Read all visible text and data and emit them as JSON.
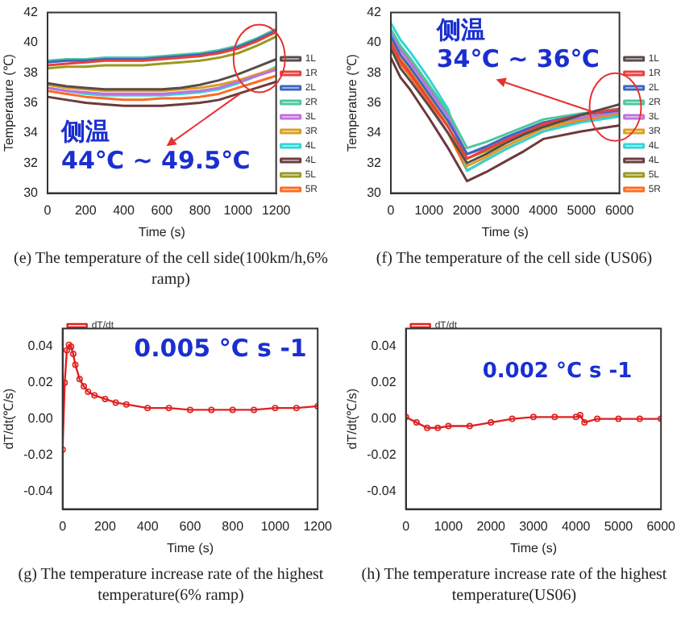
{
  "chart_data": [
    {
      "type": "line",
      "title": "(e) The temperature of the cell side(100km/h,6% ramp)",
      "xlabel": "Time (s)",
      "ylabel": "Temperature (℃)",
      "annotations": [
        "侧温",
        {
          "text": "44℃ ~ 49.5℃",
          "x": 1010,
          "y": 36.6
        }
      ],
      "legend": "right",
      "xlim": [
        0,
        1200
      ],
      "xticks": [
        0,
        200,
        400,
        600,
        800,
        1000,
        1200
      ],
      "ylim": [
        30,
        42
      ],
      "yticks": [
        30,
        32,
        34,
        36,
        38,
        40,
        42
      ],
      "x": [
        0,
        100,
        200,
        300,
        400,
        500,
        600,
        700,
        800,
        900,
        1000,
        1100,
        1200
      ],
      "series": [
        {
          "name": "1L",
          "color": "#5a4a4a",
          "values": [
            37.3,
            37.1,
            37.0,
            36.9,
            36.9,
            36.9,
            36.9,
            37.0,
            37.2,
            37.5,
            37.9,
            38.4,
            38.9
          ]
        },
        {
          "name": "1R",
          "color": "#e8403a",
          "values": [
            38.5,
            38.6,
            38.7,
            38.8,
            38.8,
            38.8,
            38.9,
            39.0,
            39.1,
            39.3,
            39.6,
            40.1,
            40.7
          ]
        },
        {
          "name": "2L",
          "color": "#3a66c0",
          "values": [
            38.7,
            38.8,
            38.8,
            38.9,
            38.9,
            38.9,
            39.0,
            39.1,
            39.2,
            39.4,
            39.7,
            40.2,
            40.8
          ]
        },
        {
          "name": "2R",
          "color": "#4cc6a0",
          "values": [
            38.8,
            38.9,
            38.9,
            39.0,
            39.0,
            39.0,
            39.1,
            39.2,
            39.3,
            39.5,
            39.8,
            40.3,
            40.9
          ]
        },
        {
          "name": "3L",
          "color": "#c070e0",
          "values": [
            37.0,
            36.8,
            36.7,
            36.6,
            36.6,
            36.6,
            36.6,
            36.7,
            36.8,
            37.0,
            37.4,
            37.8,
            38.2
          ]
        },
        {
          "name": "3R",
          "color": "#d8a020",
          "values": [
            37.2,
            37.0,
            36.9,
            36.8,
            36.8,
            36.8,
            36.8,
            36.9,
            37.0,
            37.2,
            37.5,
            37.9,
            38.3
          ]
        },
        {
          "name": "4L",
          "color": "#30d6d6",
          "values": [
            37.0,
            36.8,
            36.6,
            36.5,
            36.5,
            36.5,
            36.5,
            36.6,
            36.7,
            36.9,
            37.3,
            37.8,
            38.4
          ]
        },
        {
          "name": "4L",
          "color": "#6e3a3a",
          "values": [
            36.4,
            36.2,
            36.0,
            35.9,
            35.8,
            35.8,
            35.8,
            35.9,
            36.0,
            36.2,
            36.6,
            37.0,
            37.4
          ]
        },
        {
          "name": "5L",
          "color": "#9a9a20",
          "values": [
            38.3,
            38.4,
            38.4,
            38.5,
            38.5,
            38.5,
            38.6,
            38.7,
            38.8,
            39.0,
            39.3,
            39.8,
            40.4
          ]
        },
        {
          "name": "5R",
          "color": "#ff6a20",
          "values": [
            36.8,
            36.6,
            36.4,
            36.3,
            36.2,
            36.2,
            36.3,
            36.3,
            36.4,
            36.6,
            37.0,
            37.4,
            37.8
          ]
        }
      ]
    },
    {
      "type": "line",
      "title": "(f) The temperature of the cell side (US06)",
      "xlabel": "Time (s)",
      "ylabel": "Temperature (℃)",
      "annotations": [
        "侧温",
        {
          "text": "34℃ ~ 36℃",
          "x": 5300,
          "y": 35.4
        }
      ],
      "legend": "right",
      "xlim": [
        0,
        6000
      ],
      "xticks": [
        0,
        1000,
        2000,
        3000,
        4000,
        5000,
        6000
      ],
      "ylim": [
        30,
        42
      ],
      "yticks": [
        30,
        32,
        34,
        36,
        38,
        40,
        42
      ],
      "x": [
        0,
        250,
        500,
        1000,
        1500,
        2000,
        2500,
        3000,
        3500,
        4000,
        5000,
        6000
      ],
      "series": [
        {
          "name": "1L",
          "color": "#5a4a4a",
          "values": [
            39.6,
            38.3,
            37.5,
            35.8,
            34.0,
            32.0,
            32.6,
            33.3,
            33.9,
            34.4,
            35.2,
            35.9
          ]
        },
        {
          "name": "1R",
          "color": "#e8403a",
          "values": [
            40.0,
            38.8,
            38.0,
            36.2,
            34.4,
            32.3,
            32.9,
            33.5,
            34.0,
            34.6,
            35.2,
            35.6
          ]
        },
        {
          "name": "2L",
          "color": "#3a66c0",
          "values": [
            40.4,
            39.2,
            38.4,
            36.6,
            34.8,
            32.6,
            33.1,
            33.7,
            34.2,
            34.7,
            35.2,
            35.5
          ]
        },
        {
          "name": "2R",
          "color": "#4cc6a0",
          "values": [
            40.9,
            39.8,
            39.0,
            37.2,
            35.4,
            33.0,
            33.4,
            33.9,
            34.4,
            34.9,
            35.3,
            35.6
          ]
        },
        {
          "name": "3L",
          "color": "#c070e0",
          "values": [
            40.6,
            39.5,
            38.7,
            36.9,
            35.1,
            32.6,
            33.0,
            33.6,
            34.1,
            34.6,
            35.0,
            35.4
          ]
        },
        {
          "name": "3R",
          "color": "#d8a020",
          "values": [
            40.2,
            39.0,
            38.2,
            36.4,
            34.5,
            31.8,
            32.4,
            33.1,
            33.7,
            34.3,
            34.9,
            35.3
          ]
        },
        {
          "name": "4L",
          "color": "#30d6d6",
          "values": [
            41.3,
            40.2,
            39.4,
            37.6,
            35.6,
            31.5,
            32.2,
            32.9,
            33.5,
            34.1,
            34.7,
            35.1
          ]
        },
        {
          "name": "4L",
          "color": "#6e3a3a",
          "values": [
            39.0,
            37.7,
            36.9,
            35.0,
            33.0,
            30.8,
            31.4,
            32.1,
            32.8,
            33.6,
            34.1,
            34.5
          ]
        },
        {
          "name": "5L",
          "color": "#9a9a20",
          "values": [
            40.7,
            39.6,
            38.8,
            37.0,
            35.2,
            32.3,
            32.8,
            33.4,
            34.0,
            34.5,
            35.0,
            35.3
          ]
        },
        {
          "name": "5R",
          "color": "#ff6a20",
          "values": [
            39.8,
            38.6,
            37.8,
            36.0,
            34.0,
            31.5,
            32.2,
            32.9,
            33.5,
            34.1,
            34.8,
            35.2
          ]
        }
      ]
    },
    {
      "type": "line",
      "title": "(g) The temperature increase rate of the highest temperature(6% ramp)",
      "xlabel": "Time (s)",
      "ylabel": "dT/dt(℃/s)",
      "annotations": [
        "0.005 °C s -1"
      ],
      "legend": "top left",
      "marker": "circle",
      "xlim": [
        0,
        1200
      ],
      "xticks": [
        0,
        200,
        400,
        600,
        800,
        1000,
        1200
      ],
      "ylim": [
        -0.05,
        0.05
      ],
      "yticks": [
        -0.04,
        -0.02,
        {
          "value": 0,
          "label": "0.00"
        },
        0.02,
        0.04
      ],
      "x": [
        0,
        10,
        20,
        30,
        40,
        50,
        60,
        80,
        100,
        120,
        150,
        200,
        250,
        300,
        400,
        500,
        600,
        700,
        800,
        900,
        1000,
        1100,
        1200
      ],
      "series": [
        {
          "name": "dT/dt",
          "color": "#e02020",
          "values": [
            -0.017,
            0.02,
            0.038,
            0.041,
            0.04,
            0.036,
            0.03,
            0.022,
            0.018,
            0.015,
            0.013,
            0.011,
            0.009,
            0.008,
            0.006,
            0.006,
            0.005,
            0.005,
            0.005,
            0.005,
            0.006,
            0.006,
            0.007
          ]
        }
      ]
    },
    {
      "type": "line",
      "title": "(h) The temperature increase rate of the highest temperature(US06)",
      "xlabel": "Time (s)",
      "ylabel": "dT/dt(℃/s)",
      "annotations": [
        "0.002 °C s -1"
      ],
      "legend": "top left",
      "marker": "circle",
      "xlim": [
        0,
        6000
      ],
      "xticks": [
        0,
        1000,
        2000,
        3000,
        4000,
        5000,
        6000
      ],
      "ylim": [
        -0.05,
        0.05
      ],
      "yticks": [
        -0.04,
        -0.02,
        {
          "value": 0,
          "label": "0.00"
        },
        0.02,
        0.04
      ],
      "x": [
        0,
        250,
        500,
        750,
        1000,
        1500,
        2000,
        2500,
        3000,
        3500,
        4000,
        4100,
        4200,
        4500,
        5000,
        5500,
        6000
      ],
      "series": [
        {
          "name": "dT/dt",
          "color": "#e02020",
          "values": [
            0.001,
            -0.002,
            -0.005,
            -0.005,
            -0.004,
            -0.004,
            -0.002,
            0.0,
            0.001,
            0.001,
            0.001,
            0.002,
            -0.002,
            0.0,
            0.0,
            0.0,
            0.0
          ]
        }
      ]
    }
  ]
}
